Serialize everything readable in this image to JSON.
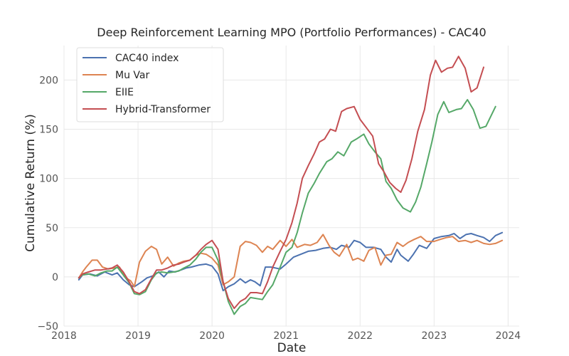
{
  "chart_data": {
    "type": "line",
    "title": "Deep Reinforcement Learning MPO (Portfolio Performances) - CAC40",
    "xlabel": "Date",
    "ylabel": "Cumulative Return (%)",
    "xlim": [
      2018.0,
      2024.15
    ],
    "ylim": [
      -50,
      235
    ],
    "grid": true,
    "legend_position": "top-left",
    "x_ticks": [
      2018,
      2019,
      2020,
      2021,
      2022,
      2023,
      2024
    ],
    "y_ticks": [
      -50,
      0,
      50,
      100,
      150,
      200
    ],
    "x_tick_labels": [
      "2018",
      "2019",
      "2020",
      "2021",
      "2022",
      "2023",
      "2024"
    ],
    "y_tick_labels": [
      "−50",
      "0",
      "50",
      "100",
      "150",
      "200"
    ],
    "series": [
      {
        "name": "CAC40 index",
        "color": "#4c72b0",
        "points": [
          [
            2018.2,
            -3
          ],
          [
            2018.25,
            2
          ],
          [
            2018.35,
            3
          ],
          [
            2018.45,
            1
          ],
          [
            2018.55,
            5
          ],
          [
            2018.65,
            2
          ],
          [
            2018.72,
            4
          ],
          [
            2018.8,
            -3
          ],
          [
            2018.88,
            -8
          ],
          [
            2018.95,
            -10
          ],
          [
            2019.05,
            -5
          ],
          [
            2019.12,
            -1
          ],
          [
            2019.2,
            1
          ],
          [
            2019.28,
            5
          ],
          [
            2019.35,
            0
          ],
          [
            2019.42,
            6
          ],
          [
            2019.5,
            5
          ],
          [
            2019.58,
            7
          ],
          [
            2019.65,
            9
          ],
          [
            2019.72,
            10
          ],
          [
            2019.82,
            12
          ],
          [
            2019.92,
            13
          ],
          [
            2020.0,
            11
          ],
          [
            2020.08,
            3
          ],
          [
            2020.15,
            -14
          ],
          [
            2020.22,
            -10
          ],
          [
            2020.3,
            -7
          ],
          [
            2020.38,
            -2
          ],
          [
            2020.45,
            -6
          ],
          [
            2020.52,
            -3
          ],
          [
            2020.58,
            -5
          ],
          [
            2020.65,
            -9
          ],
          [
            2020.72,
            10
          ],
          [
            2020.8,
            10
          ],
          [
            2020.92,
            8
          ],
          [
            2021.0,
            13
          ],
          [
            2021.1,
            20
          ],
          [
            2021.2,
            23
          ],
          [
            2021.3,
            26
          ],
          [
            2021.4,
            27
          ],
          [
            2021.5,
            29
          ],
          [
            2021.6,
            30
          ],
          [
            2021.68,
            28
          ],
          [
            2021.75,
            32
          ],
          [
            2021.85,
            30
          ],
          [
            2021.92,
            37
          ],
          [
            2022.0,
            35
          ],
          [
            2022.08,
            30
          ],
          [
            2022.18,
            30
          ],
          [
            2022.28,
            28
          ],
          [
            2022.35,
            20
          ],
          [
            2022.42,
            15
          ],
          [
            2022.5,
            28
          ],
          [
            2022.55,
            22
          ],
          [
            2022.65,
            16
          ],
          [
            2022.72,
            23
          ],
          [
            2022.8,
            32
          ],
          [
            2022.9,
            29
          ],
          [
            2023.0,
            39
          ],
          [
            2023.1,
            41
          ],
          [
            2023.2,
            42
          ],
          [
            2023.27,
            44
          ],
          [
            2023.35,
            39
          ],
          [
            2023.43,
            43
          ],
          [
            2023.5,
            44
          ],
          [
            2023.58,
            42
          ],
          [
            2023.67,
            40
          ],
          [
            2023.75,
            36
          ],
          [
            2023.83,
            42
          ],
          [
            2023.92,
            45
          ]
        ]
      },
      {
        "name": "Mu Var",
        "color": "#dd8452",
        "points": [
          [
            2018.2,
            -1
          ],
          [
            2018.25,
            5
          ],
          [
            2018.3,
            10
          ],
          [
            2018.38,
            17
          ],
          [
            2018.45,
            17
          ],
          [
            2018.52,
            10
          ],
          [
            2018.6,
            8
          ],
          [
            2018.68,
            9
          ],
          [
            2018.75,
            10
          ],
          [
            2018.82,
            0
          ],
          [
            2018.9,
            -4
          ],
          [
            2018.95,
            -10
          ],
          [
            2019.02,
            15
          ],
          [
            2019.1,
            26
          ],
          [
            2019.18,
            31
          ],
          [
            2019.25,
            28
          ],
          [
            2019.32,
            13
          ],
          [
            2019.4,
            20
          ],
          [
            2019.48,
            11
          ],
          [
            2019.55,
            14
          ],
          [
            2019.62,
            16
          ],
          [
            2019.7,
            17
          ],
          [
            2019.78,
            22
          ],
          [
            2019.85,
            24
          ],
          [
            2019.92,
            23
          ],
          [
            2020.0,
            19
          ],
          [
            2020.08,
            12
          ],
          [
            2020.15,
            -8
          ],
          [
            2020.22,
            -5
          ],
          [
            2020.3,
            0
          ],
          [
            2020.38,
            31
          ],
          [
            2020.45,
            36
          ],
          [
            2020.52,
            35
          ],
          [
            2020.6,
            32
          ],
          [
            2020.68,
            25
          ],
          [
            2020.75,
            31
          ],
          [
            2020.82,
            28
          ],
          [
            2020.92,
            37
          ],
          [
            2021.0,
            31
          ],
          [
            2021.08,
            38
          ],
          [
            2021.15,
            30
          ],
          [
            2021.25,
            33
          ],
          [
            2021.33,
            32
          ],
          [
            2021.42,
            35
          ],
          [
            2021.5,
            43
          ],
          [
            2021.58,
            32
          ],
          [
            2021.65,
            25
          ],
          [
            2021.72,
            21
          ],
          [
            2021.82,
            33
          ],
          [
            2021.9,
            17
          ],
          [
            2021.97,
            19
          ],
          [
            2022.05,
            16
          ],
          [
            2022.12,
            27
          ],
          [
            2022.2,
            30
          ],
          [
            2022.28,
            12
          ],
          [
            2022.35,
            22
          ],
          [
            2022.42,
            23
          ],
          [
            2022.5,
            35
          ],
          [
            2022.58,
            31
          ],
          [
            2022.65,
            35
          ],
          [
            2022.73,
            38
          ],
          [
            2022.82,
            41
          ],
          [
            2022.9,
            36
          ],
          [
            2023.0,
            36
          ],
          [
            2023.08,
            38
          ],
          [
            2023.17,
            40
          ],
          [
            2023.25,
            41
          ],
          [
            2023.33,
            36
          ],
          [
            2023.42,
            37
          ],
          [
            2023.5,
            35
          ],
          [
            2023.58,
            37
          ],
          [
            2023.67,
            34
          ],
          [
            2023.75,
            33
          ],
          [
            2023.83,
            34
          ],
          [
            2023.92,
            37
          ]
        ]
      },
      {
        "name": "EIIE",
        "color": "#55a868",
        "points": [
          [
            2018.2,
            -1
          ],
          [
            2018.25,
            2
          ],
          [
            2018.33,
            3
          ],
          [
            2018.42,
            1
          ],
          [
            2018.5,
            4
          ],
          [
            2018.58,
            6
          ],
          [
            2018.65,
            6
          ],
          [
            2018.72,
            10
          ],
          [
            2018.8,
            2
          ],
          [
            2018.88,
            -6
          ],
          [
            2018.95,
            -17
          ],
          [
            2019.02,
            -18
          ],
          [
            2019.1,
            -15
          ],
          [
            2019.18,
            -3
          ],
          [
            2019.25,
            4
          ],
          [
            2019.32,
            5
          ],
          [
            2019.4,
            4
          ],
          [
            2019.48,
            5
          ],
          [
            2019.55,
            6
          ],
          [
            2019.62,
            9
          ],
          [
            2019.7,
            12
          ],
          [
            2019.78,
            18
          ],
          [
            2019.85,
            25
          ],
          [
            2019.92,
            30
          ],
          [
            2020.0,
            30
          ],
          [
            2020.08,
            17
          ],
          [
            2020.15,
            -5
          ],
          [
            2020.22,
            -25
          ],
          [
            2020.3,
            -38
          ],
          [
            2020.38,
            -30
          ],
          [
            2020.45,
            -27
          ],
          [
            2020.52,
            -21
          ],
          [
            2020.6,
            -22
          ],
          [
            2020.68,
            -23
          ],
          [
            2020.75,
            -15
          ],
          [
            2020.82,
            -8
          ],
          [
            2020.92,
            10
          ],
          [
            2021.0,
            25
          ],
          [
            2021.08,
            30
          ],
          [
            2021.15,
            45
          ],
          [
            2021.22,
            65
          ],
          [
            2021.3,
            85
          ],
          [
            2021.38,
            95
          ],
          [
            2021.45,
            105
          ],
          [
            2021.55,
            117
          ],
          [
            2021.62,
            120
          ],
          [
            2021.7,
            127
          ],
          [
            2021.78,
            123
          ],
          [
            2021.88,
            137
          ],
          [
            2021.95,
            140
          ],
          [
            2022.05,
            145
          ],
          [
            2022.12,
            135
          ],
          [
            2022.2,
            127
          ],
          [
            2022.28,
            120
          ],
          [
            2022.35,
            97
          ],
          [
            2022.42,
            90
          ],
          [
            2022.5,
            78
          ],
          [
            2022.58,
            70
          ],
          [
            2022.68,
            66
          ],
          [
            2022.75,
            76
          ],
          [
            2022.82,
            91
          ],
          [
            2022.9,
            115
          ],
          [
            2022.97,
            137
          ],
          [
            2023.05,
            165
          ],
          [
            2023.13,
            178
          ],
          [
            2023.2,
            167
          ],
          [
            2023.3,
            170
          ],
          [
            2023.37,
            171
          ],
          [
            2023.45,
            180
          ],
          [
            2023.53,
            170
          ],
          [
            2023.62,
            151
          ],
          [
            2023.7,
            153
          ],
          [
            2023.83,
            173
          ]
        ]
      },
      {
        "name": "Hybrid-Transformer",
        "color": "#c44e52",
        "points": [
          [
            2018.2,
            -1
          ],
          [
            2018.25,
            3
          ],
          [
            2018.33,
            5
          ],
          [
            2018.42,
            7
          ],
          [
            2018.5,
            7
          ],
          [
            2018.58,
            8
          ],
          [
            2018.65,
            9
          ],
          [
            2018.72,
            12
          ],
          [
            2018.8,
            5
          ],
          [
            2018.88,
            -5
          ],
          [
            2018.95,
            -15
          ],
          [
            2019.02,
            -17
          ],
          [
            2019.1,
            -13
          ],
          [
            2019.18,
            -2
          ],
          [
            2019.25,
            7
          ],
          [
            2019.32,
            7
          ],
          [
            2019.4,
            9
          ],
          [
            2019.48,
            12
          ],
          [
            2019.55,
            13
          ],
          [
            2019.62,
            15
          ],
          [
            2019.7,
            17
          ],
          [
            2019.78,
            22
          ],
          [
            2019.85,
            28
          ],
          [
            2019.92,
            33
          ],
          [
            2020.0,
            37
          ],
          [
            2020.08,
            28
          ],
          [
            2020.15,
            -5
          ],
          [
            2020.22,
            -22
          ],
          [
            2020.3,
            -32
          ],
          [
            2020.38,
            -25
          ],
          [
            2020.45,
            -22
          ],
          [
            2020.52,
            -16
          ],
          [
            2020.6,
            -16
          ],
          [
            2020.68,
            -17
          ],
          [
            2020.75,
            -5
          ],
          [
            2020.82,
            10
          ],
          [
            2020.92,
            26
          ],
          [
            2021.0,
            38
          ],
          [
            2021.08,
            55
          ],
          [
            2021.15,
            75
          ],
          [
            2021.22,
            100
          ],
          [
            2021.3,
            113
          ],
          [
            2021.38,
            125
          ],
          [
            2021.45,
            137
          ],
          [
            2021.52,
            140
          ],
          [
            2021.6,
            150
          ],
          [
            2021.67,
            148
          ],
          [
            2021.75,
            168
          ],
          [
            2021.82,
            171
          ],
          [
            2021.92,
            173
          ],
          [
            2022.0,
            160
          ],
          [
            2022.08,
            152
          ],
          [
            2022.17,
            143
          ],
          [
            2022.25,
            115
          ],
          [
            2022.32,
            107
          ],
          [
            2022.4,
            96
          ],
          [
            2022.48,
            90
          ],
          [
            2022.55,
            86
          ],
          [
            2022.62,
            98
          ],
          [
            2022.7,
            120
          ],
          [
            2022.78,
            148
          ],
          [
            2022.87,
            170
          ],
          [
            2022.95,
            205
          ],
          [
            2023.02,
            220
          ],
          [
            2023.1,
            208
          ],
          [
            2023.18,
            212
          ],
          [
            2023.25,
            213
          ],
          [
            2023.33,
            224
          ],
          [
            2023.42,
            212
          ],
          [
            2023.5,
            188
          ],
          [
            2023.58,
            192
          ],
          [
            2023.67,
            213
          ]
        ]
      }
    ]
  }
}
